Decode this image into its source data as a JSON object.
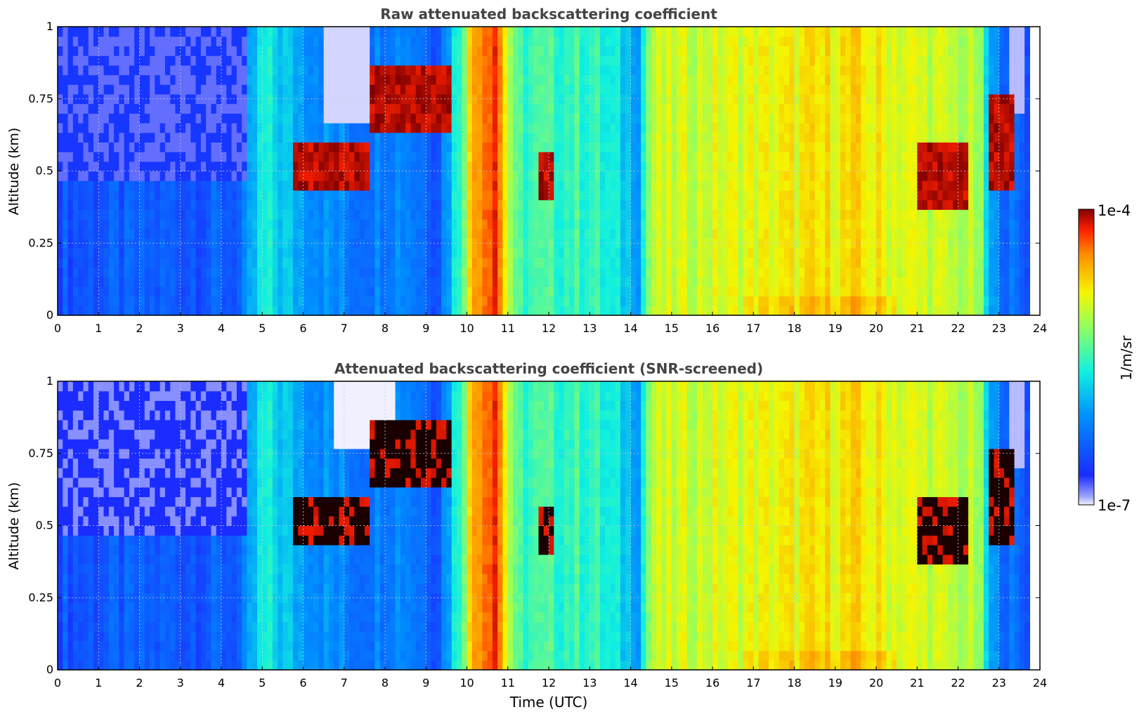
{
  "chart_data": [
    {
      "type": "heatmap",
      "title": "Raw attenuated backscattering coefficient",
      "ylabel": "Altitude (km)",
      "xlabel": "",
      "xlim": [
        0,
        24
      ],
      "ylim": [
        0,
        1
      ],
      "xticks": [
        "0",
        "1",
        "2",
        "3",
        "4",
        "5",
        "6",
        "7",
        "8",
        "9",
        "10",
        "11",
        "12",
        "13",
        "14",
        "15",
        "16",
        "17",
        "18",
        "19",
        "20",
        "21",
        "22",
        "23",
        "24"
      ],
      "yticks": [
        "0",
        "0.25",
        "0.5",
        "0.75",
        "1"
      ],
      "grid": true,
      "color_scale": "jet",
      "profile_levels": [
        {
          "t": 0.0,
          "level": 0.18
        },
        {
          "t": 4.5,
          "level": 0.2
        },
        {
          "t": 5.0,
          "level": 0.45
        },
        {
          "t": 5.8,
          "level": 0.35
        },
        {
          "t": 6.5,
          "level": 0.3
        },
        {
          "t": 7.3,
          "level": 0.25
        },
        {
          "t": 8.4,
          "level": 0.3
        },
        {
          "t": 9.3,
          "level": 0.2
        },
        {
          "t": 9.8,
          "level": 0.5
        },
        {
          "t": 10.2,
          "level": 0.85
        },
        {
          "t": 10.7,
          "level": 0.95
        },
        {
          "t": 11.2,
          "level": 0.5
        },
        {
          "t": 13.0,
          "level": 0.5
        },
        {
          "t": 14.2,
          "level": 0.35
        },
        {
          "t": 14.5,
          "level": 0.65
        },
        {
          "t": 16.0,
          "level": 0.68
        },
        {
          "t": 19.4,
          "level": 0.74
        },
        {
          "t": 21.0,
          "level": 0.68
        },
        {
          "t": 22.5,
          "level": 0.62
        },
        {
          "t": 22.8,
          "level": 0.3
        },
        {
          "t": 23.5,
          "level": 0.2
        },
        {
          "t": 23.8,
          "level": 0.2
        }
      ],
      "cloud_regions": [
        {
          "t0": 5.8,
          "t1": 7.6,
          "y0": 0.42,
          "y1": 0.6
        },
        {
          "t0": 7.6,
          "t1": 9.6,
          "y0": 0.62,
          "y1": 0.85
        },
        {
          "t0": 11.8,
          "t1": 12.1,
          "y0": 0.4,
          "y1": 0.55
        },
        {
          "t0": 21.0,
          "t1": 22.2,
          "y0": 0.38,
          "y1": 0.6
        },
        {
          "t0": 22.7,
          "t1": 23.4,
          "y0": 0.45,
          "y1": 0.78
        }
      ]
    },
    {
      "type": "heatmap",
      "title": "Attenuated backscattering coefficient (SNR-screened)",
      "ylabel": "Altitude (km)",
      "xlabel": "Time (UTC)",
      "xlim": [
        0,
        24
      ],
      "ylim": [
        0,
        1
      ],
      "xticks": [
        "0",
        "1",
        "2",
        "3",
        "4",
        "5",
        "6",
        "7",
        "8",
        "9",
        "10",
        "11",
        "12",
        "13",
        "14",
        "15",
        "16",
        "17",
        "18",
        "19",
        "20",
        "21",
        "22",
        "23",
        "24"
      ],
      "yticks": [
        "0",
        "0.25",
        "0.5",
        "0.75",
        "1"
      ],
      "grid": true,
      "color_scale": "jet",
      "screened": true
    }
  ],
  "colorbar": {
    "label": "1/m/sr",
    "max_label": "1e-4",
    "min_label": "1e-7",
    "scale": "log",
    "range": [
      1e-07,
      0.0001
    ]
  }
}
